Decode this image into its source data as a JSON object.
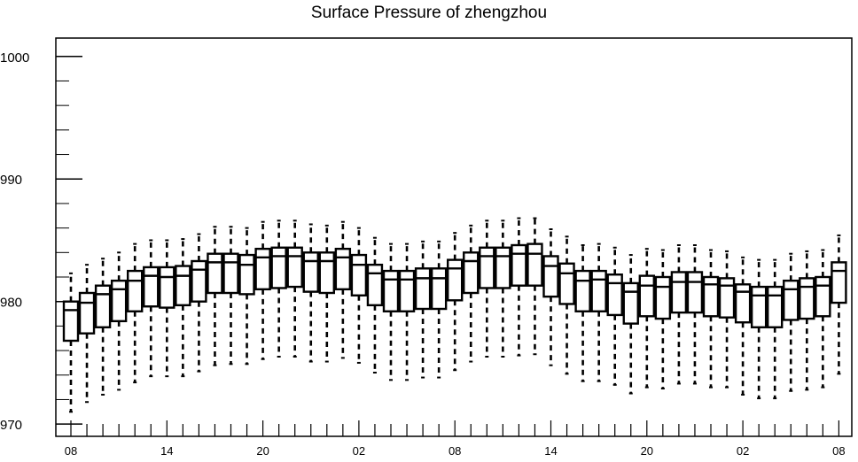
{
  "chart_data": {
    "type": "box",
    "title": "Surface Pressure of zhengzhou",
    "xlabel": "",
    "ylabel": "",
    "ylim": [
      969,
      1001.5
    ],
    "y_ticks": [
      970,
      980,
      990,
      1000
    ],
    "y_tick_labels": [
      "970",
      "980",
      "990",
      "1000"
    ],
    "x_tick_labels": [
      "08",
      "14",
      "20",
      "02",
      "08",
      "14",
      "20",
      "02",
      "08"
    ],
    "x_tick_positions": [
      0,
      6,
      12,
      18,
      24,
      30,
      36,
      42,
      48
    ],
    "grid": false,
    "box_count": 49,
    "boxes": [
      {
        "x": 0,
        "low": 971.0,
        "q1": 976.8,
        "median": 979.3,
        "q3": 980.0,
        "high": 982.3
      },
      {
        "x": 1,
        "low": 971.8,
        "q1": 977.4,
        "median": 979.9,
        "q3": 980.7,
        "high": 983.0
      },
      {
        "x": 2,
        "low": 972.4,
        "q1": 977.9,
        "median": 980.6,
        "q3": 981.3,
        "high": 983.5
      },
      {
        "x": 3,
        "low": 972.8,
        "q1": 978.4,
        "median": 981.0,
        "q3": 981.7,
        "high": 984.0
      },
      {
        "x": 4,
        "low": 973.4,
        "q1": 979.2,
        "median": 981.7,
        "q3": 982.5,
        "high": 984.7
      },
      {
        "x": 5,
        "low": 973.9,
        "q1": 979.6,
        "median": 982.1,
        "q3": 982.8,
        "high": 985.0
      },
      {
        "x": 6,
        "low": 973.9,
        "q1": 979.5,
        "median": 982.0,
        "q3": 982.8,
        "high": 985.0
      },
      {
        "x": 7,
        "low": 973.9,
        "q1": 979.7,
        "median": 982.1,
        "q3": 982.9,
        "high": 985.1
      },
      {
        "x": 8,
        "low": 974.3,
        "q1": 980.0,
        "median": 982.6,
        "q3": 983.3,
        "high": 985.5
      },
      {
        "x": 9,
        "low": 974.8,
        "q1": 980.7,
        "median": 983.2,
        "q3": 983.9,
        "high": 986.1
      },
      {
        "x": 10,
        "low": 974.9,
        "q1": 980.7,
        "median": 983.2,
        "q3": 983.9,
        "high": 986.1
      },
      {
        "x": 11,
        "low": 974.9,
        "q1": 980.6,
        "median": 983.0,
        "q3": 983.8,
        "high": 986.0
      },
      {
        "x": 12,
        "low": 975.3,
        "q1": 981.0,
        "median": 983.6,
        "q3": 984.3,
        "high": 986.5
      },
      {
        "x": 13,
        "low": 975.5,
        "q1": 981.1,
        "median": 983.7,
        "q3": 984.4,
        "high": 986.6
      },
      {
        "x": 14,
        "low": 975.5,
        "q1": 981.2,
        "median": 983.7,
        "q3": 984.4,
        "high": 986.6
      },
      {
        "x": 15,
        "low": 975.1,
        "q1": 980.8,
        "median": 983.3,
        "q3": 984.0,
        "high": 986.3
      },
      {
        "x": 16,
        "low": 975.1,
        "q1": 980.7,
        "median": 983.3,
        "q3": 984.0,
        "high": 986.2
      },
      {
        "x": 17,
        "low": 975.4,
        "q1": 981.0,
        "median": 983.6,
        "q3": 984.3,
        "high": 986.5
      },
      {
        "x": 18,
        "low": 975.0,
        "q1": 980.5,
        "median": 983.0,
        "q3": 983.8,
        "high": 986.0
      },
      {
        "x": 19,
        "low": 974.2,
        "q1": 979.7,
        "median": 982.3,
        "q3": 983.0,
        "high": 985.2
      },
      {
        "x": 20,
        "low": 973.6,
        "q1": 979.2,
        "median": 981.8,
        "q3": 982.5,
        "high": 984.7
      },
      {
        "x": 21,
        "low": 973.6,
        "q1": 979.2,
        "median": 981.8,
        "q3": 982.5,
        "high": 984.7
      },
      {
        "x": 22,
        "low": 973.8,
        "q1": 979.4,
        "median": 981.9,
        "q3": 982.7,
        "high": 984.9
      },
      {
        "x": 23,
        "low": 973.8,
        "q1": 979.4,
        "median": 981.9,
        "q3": 982.7,
        "high": 984.9
      },
      {
        "x": 24,
        "low": 974.4,
        "q1": 980.1,
        "median": 982.7,
        "q3": 983.4,
        "high": 985.6
      },
      {
        "x": 25,
        "low": 975.1,
        "q1": 980.7,
        "median": 983.3,
        "q3": 984.0,
        "high": 986.2
      },
      {
        "x": 26,
        "low": 975.5,
        "q1": 981.1,
        "median": 983.7,
        "q3": 984.4,
        "high": 986.6
      },
      {
        "x": 27,
        "low": 975.5,
        "q1": 981.1,
        "median": 983.7,
        "q3": 984.4,
        "high": 986.6
      },
      {
        "x": 28,
        "low": 975.6,
        "q1": 981.3,
        "median": 983.9,
        "q3": 984.6,
        "high": 986.8
      },
      {
        "x": 29,
        "low": 975.7,
        "q1": 981.3,
        "median": 983.9,
        "q3": 984.7,
        "high": 986.8
      },
      {
        "x": 30,
        "low": 974.8,
        "q1": 980.4,
        "median": 982.9,
        "q3": 983.7,
        "high": 985.9
      },
      {
        "x": 31,
        "low": 974.1,
        "q1": 979.8,
        "median": 982.3,
        "q3": 983.1,
        "high": 985.3
      },
      {
        "x": 32,
        "low": 973.5,
        "q1": 979.2,
        "median": 981.7,
        "q3": 982.5,
        "high": 984.6
      },
      {
        "x": 33,
        "low": 973.5,
        "q1": 979.2,
        "median": 981.8,
        "q3": 982.5,
        "high": 984.7
      },
      {
        "x": 34,
        "low": 973.2,
        "q1": 978.9,
        "median": 981.5,
        "q3": 982.2,
        "high": 984.4
      },
      {
        "x": 35,
        "low": 972.5,
        "q1": 978.2,
        "median": 980.8,
        "q3": 981.5,
        "high": 983.8
      },
      {
        "x": 36,
        "low": 973.0,
        "q1": 978.8,
        "median": 981.3,
        "q3": 982.1,
        "high": 984.3
      },
      {
        "x": 37,
        "low": 972.9,
        "q1": 978.6,
        "median": 981.2,
        "q3": 982.0,
        "high": 984.2
      },
      {
        "x": 38,
        "low": 973.3,
        "q1": 979.1,
        "median": 981.6,
        "q3": 982.4,
        "high": 984.6
      },
      {
        "x": 39,
        "low": 973.3,
        "q1": 979.1,
        "median": 981.6,
        "q3": 982.4,
        "high": 984.6
      },
      {
        "x": 40,
        "low": 973.0,
        "q1": 978.8,
        "median": 981.4,
        "q3": 982.0,
        "high": 984.2
      },
      {
        "x": 41,
        "low": 973.0,
        "q1": 978.7,
        "median": 981.3,
        "q3": 981.9,
        "high": 984.1
      },
      {
        "x": 42,
        "low": 972.4,
        "q1": 978.3,
        "median": 980.8,
        "q3": 981.4,
        "high": 983.6
      },
      {
        "x": 43,
        "low": 972.1,
        "q1": 977.9,
        "median": 980.5,
        "q3": 981.2,
        "high": 983.4
      },
      {
        "x": 44,
        "low": 972.1,
        "q1": 977.9,
        "median": 980.5,
        "q3": 981.2,
        "high": 983.4
      },
      {
        "x": 45,
        "low": 972.7,
        "q1": 978.5,
        "median": 981.0,
        "q3": 981.7,
        "high": 983.9
      },
      {
        "x": 46,
        "low": 972.8,
        "q1": 978.6,
        "median": 981.2,
        "q3": 981.9,
        "high": 984.1
      },
      {
        "x": 47,
        "low": 973.0,
        "q1": 978.8,
        "median": 981.3,
        "q3": 982.0,
        "high": 984.2
      },
      {
        "x": 48,
        "low": 974.1,
        "q1": 979.9,
        "median": 982.5,
        "q3": 983.2,
        "high": 985.4
      }
    ]
  }
}
